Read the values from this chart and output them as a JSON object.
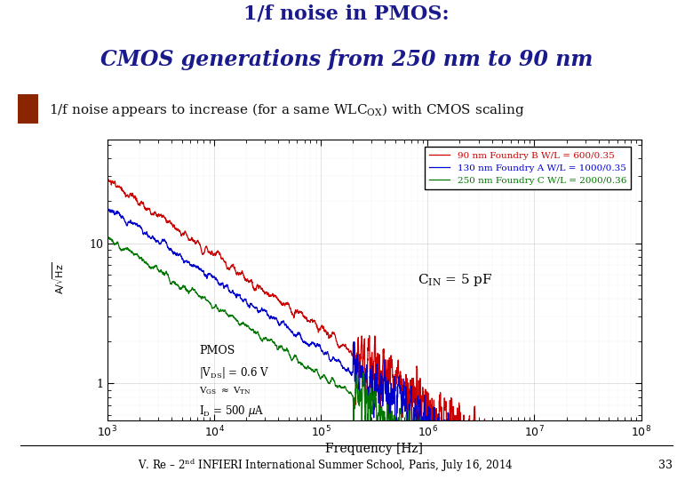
{
  "title1": "1/f noise in PMOS:",
  "title2": "CMOS generations from 250 nm to 90 nm",
  "legend_entries": [
    {
      "label": "90 nm Foundry B W/L = 600/0.35",
      "color": "#cc0000"
    },
    {
      "label": "130 nm Foundry A W/L = 1000/0.35",
      "color": "#0000cc"
    },
    {
      "label": "250 nm Foundry C W/L = 2000/0.36",
      "color": "#007700"
    }
  ],
  "xlabel": "Frequency [Hz]",
  "title1_color": "#1a1a8c",
  "title2_color": "#1a1a8c",
  "bullet_color": "#111111",
  "bullet_icon_color": "#8b2500",
  "bg_color": "#ffffff",
  "xmin": 1000.0,
  "xmax": 100000000.0,
  "ymin": 0.55,
  "ymax": 55,
  "footer_text": "V. Re – 2nd INFIERI International Summer School, Paris, July 16, 2014",
  "page_num": "33"
}
